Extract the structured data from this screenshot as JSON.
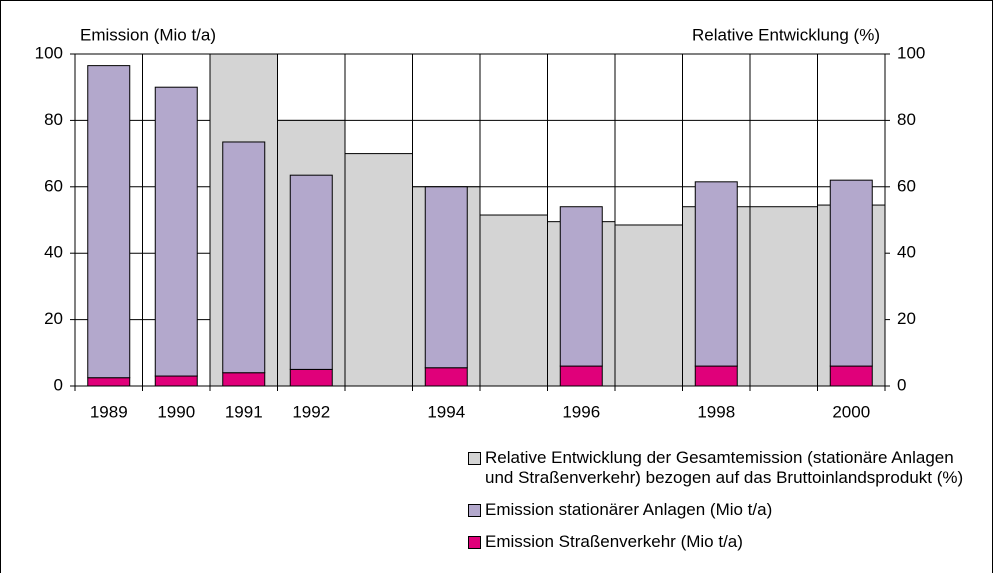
{
  "chart_data": {
    "type": "bar",
    "y_label": "Emission (Mio t/a)",
    "y2_label": "Relative Entwicklung (%)",
    "categories": [
      "1989",
      "1990",
      "1991",
      "1992",
      null,
      "1994",
      null,
      "1996",
      null,
      "1998",
      null,
      "2000"
    ],
    "series": [
      {
        "name": "Relative Entwicklung der Gesamtemission (stationäre Anlagen und Straßenverkehr) bezogen auf das Bruttoinlandsprodukt (%)",
        "color": "#d4d4d4",
        "axis": "y2",
        "values": [
          null,
          null,
          100,
          80,
          70,
          60,
          51.5,
          49.5,
          48.5,
          54,
          54,
          54.5
        ]
      },
      {
        "name": "Emission stationärer Anlagen (Mio t/a)",
        "color": "#b3a8cc",
        "values": [
          94,
          87,
          69.5,
          58.5,
          null,
          54.5,
          null,
          48,
          null,
          55.5,
          null,
          56
        ]
      },
      {
        "name": "Emission Straßenverkehr (Mio t/a)",
        "color": "#e0007a",
        "values": [
          2.5,
          3,
          4,
          5,
          null,
          5.5,
          null,
          6,
          null,
          6,
          null,
          6
        ]
      }
    ],
    "ylim": [
      0,
      100
    ],
    "yticks": [
      0,
      20,
      40,
      60,
      80,
      100
    ],
    "y2lim": [
      0,
      100
    ],
    "y2ticks": [
      0,
      20,
      40,
      60,
      80,
      100
    ],
    "grid": true
  }
}
